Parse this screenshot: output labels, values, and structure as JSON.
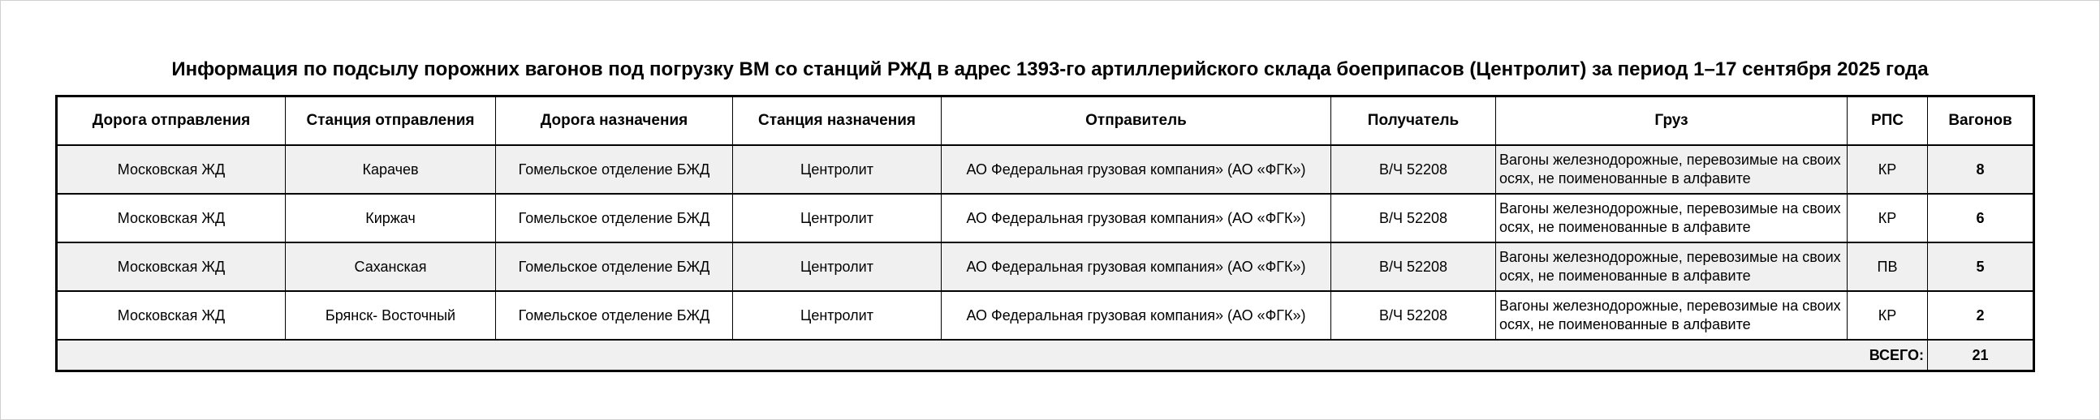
{
  "title": "Информация по подсылу порожних вагонов под погрузку ВМ со станций РЖД в адрес 1393-го артиллерийского склада боеприпасов (Центролит) за период 1–17 сентября 2025 года",
  "headers": [
    "Дорога отправления",
    "Станция отправления",
    "Дорога назначения",
    "Станция назначения",
    "Отправитель",
    "Получатель",
    "Груз",
    "РПС",
    "Вагонов"
  ],
  "rows": [
    [
      "Московская ЖД",
      "Карачев",
      "Гомельское отделение БЖД",
      "Центролит",
      "АО Федеральная грузовая компания» (АО «ФГК»)",
      "В/Ч 52208",
      "Вагоны железнодорожные, перевозимые на своих осях, не поименованные в алфавите",
      "КР",
      "8"
    ],
    [
      "Московская ЖД",
      "Киржач",
      "Гомельское отделение БЖД",
      "Центролит",
      "АО Федеральная грузовая компания» (АО «ФГК»)",
      "В/Ч 52208",
      "Вагоны железнодорожные, перевозимые на своих осях, не поименованные в алфавите",
      "КР",
      "6"
    ],
    [
      "Московская ЖД",
      "Саханская",
      "Гомельское отделение БЖД",
      "Центролит",
      "АО Федеральная грузовая компания» (АО «ФГК»)",
      "В/Ч 52208",
      "Вагоны железнодорожные, перевозимые на своих осях, не поименованные в алфавите",
      "ПВ",
      "5"
    ],
    [
      "Московская ЖД",
      "Брянск- Восточный",
      "Гомельское отделение БЖД",
      "Центролит",
      "АО Федеральная грузовая компания» (АО «ФГК»)",
      "В/Ч 52208",
      "Вагоны железнодорожные, перевозимые на своих осях, не поименованные в алфавите",
      "КР",
      "2"
    ]
  ],
  "total": {
    "label": "ВСЕГО:",
    "value": "21"
  }
}
